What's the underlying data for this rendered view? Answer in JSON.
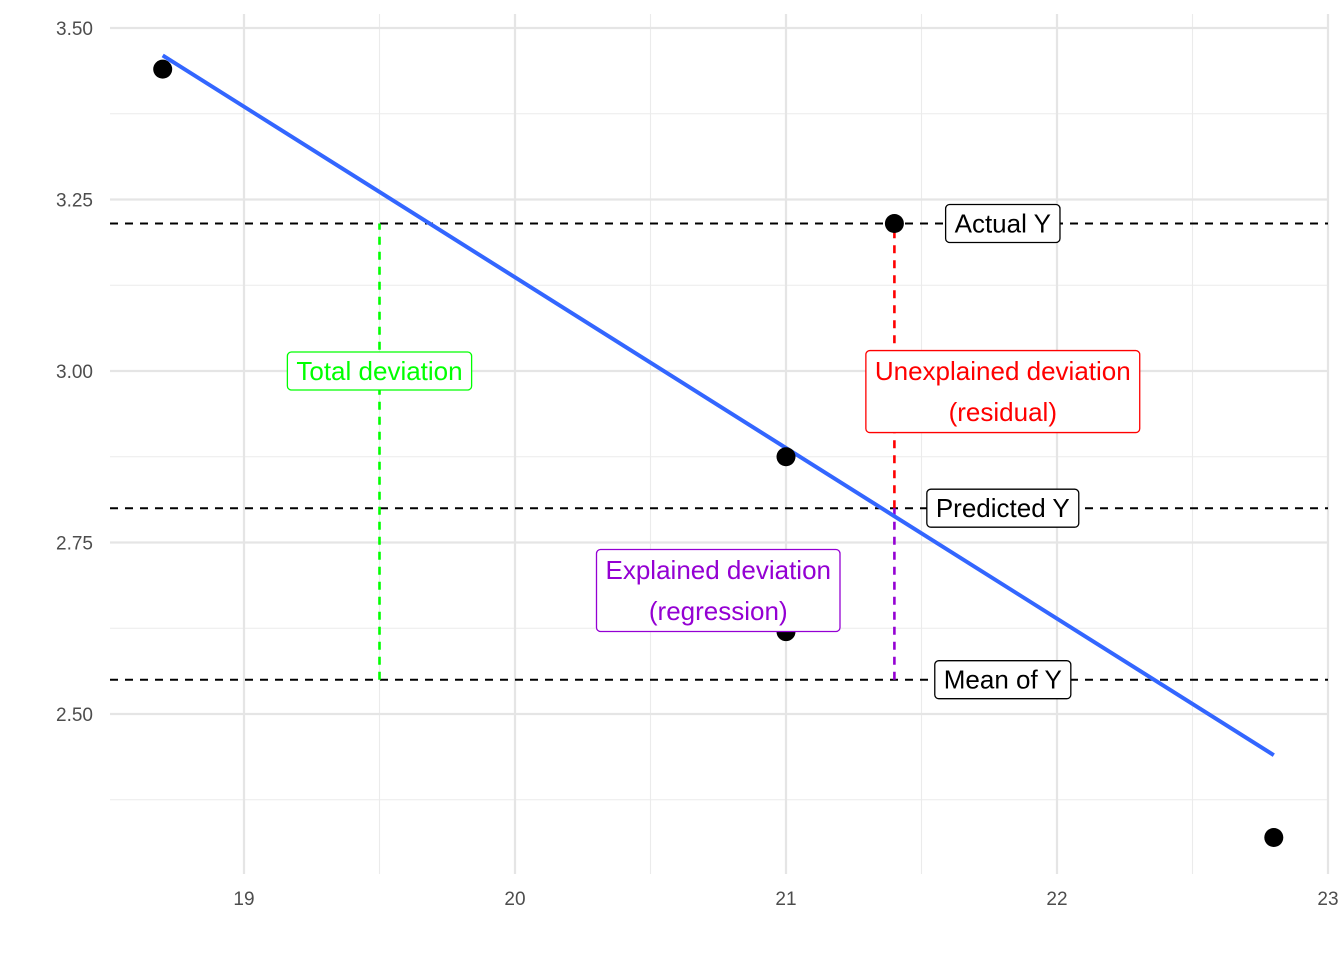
{
  "chart_data": {
    "type": "scatter",
    "title": "",
    "xlabel": "",
    "ylabel": "",
    "xlim": [
      18.5,
      23.0
    ],
    "ylim": [
      2.29,
      3.52
    ],
    "x_ticks": [
      19,
      20,
      21,
      22,
      23
    ],
    "y_ticks": [
      2.5,
      2.75,
      3.0,
      3.25,
      3.5
    ],
    "x_tick_labels": [
      "19",
      "20",
      "21",
      "22",
      "23"
    ],
    "y_tick_labels": [
      "2.50",
      "2.75",
      "3.00",
      "3.25",
      "3.50"
    ],
    "grid": true,
    "points": [
      {
        "x": 18.7,
        "y": 3.44
      },
      {
        "x": 21.0,
        "y": 2.875
      },
      {
        "x": 21.0,
        "y": 2.62
      },
      {
        "x": 21.4,
        "y": 3.215
      },
      {
        "x": 22.8,
        "y": 2.32
      }
    ],
    "regression_line": {
      "x": [
        18.7,
        22.8
      ],
      "y": [
        3.46,
        2.44
      ],
      "color": "#3366FF"
    },
    "reference_lines": [
      {
        "name": "actual",
        "y": 3.215,
        "label": "Actual Y",
        "label_x": 21.8
      },
      {
        "name": "predicted",
        "y": 2.8,
        "label": "Predicted Y",
        "label_x": 21.8
      },
      {
        "name": "mean",
        "y": 2.55,
        "label": "Mean of Y",
        "label_x": 21.8
      }
    ],
    "segments": [
      {
        "name": "total-deviation",
        "x": 19.5,
        "y0": 2.55,
        "y1": 3.215,
        "color": "#00FF00"
      },
      {
        "name": "unexplained-deviation",
        "x": 21.4,
        "y0": 2.8,
        "y1": 3.215,
        "color": "#FF0000"
      },
      {
        "name": "explained-deviation",
        "x": 21.4,
        "y0": 2.55,
        "y1": 2.8,
        "color": "#9400D3"
      }
    ],
    "annotations": [
      {
        "name": "total-deviation-label",
        "lines": [
          "Total deviation"
        ],
        "x": 19.5,
        "y": 3.0,
        "color": "#00FF00"
      },
      {
        "name": "unexplained-deviation-label",
        "lines": [
          "Unexplained deviation",
          "(residual)"
        ],
        "x": 21.8,
        "y": 2.97,
        "color": "#FF0000"
      },
      {
        "name": "explained-deviation-label",
        "lines": [
          "Explained deviation",
          "(regression)"
        ],
        "x": 20.75,
        "y": 2.68,
        "color": "#9400D3"
      }
    ]
  }
}
